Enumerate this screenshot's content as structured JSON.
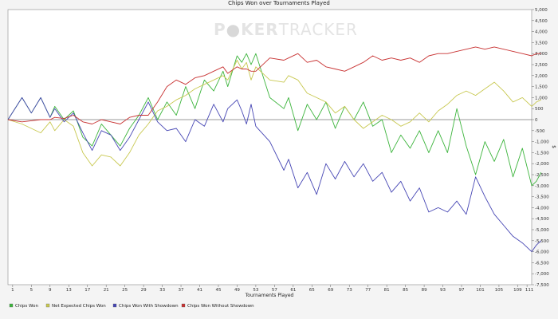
{
  "watermark": {
    "left": "P",
    "mid": "KER",
    "right": "TRACKER"
  },
  "chart_data": {
    "type": "line",
    "title": "Chips Won over Tournaments Played",
    "xlabel": "Tournaments Played",
    "ylabel": "$",
    "xlim": [
      0,
      112
    ],
    "ylim": [
      -7500,
      5000
    ],
    "x_ticks": [
      1,
      5,
      9,
      13,
      17,
      21,
      25,
      29,
      33,
      37,
      41,
      45,
      49,
      53,
      57,
      61,
      65,
      69,
      73,
      77,
      81,
      85,
      89,
      93,
      97,
      101,
      105,
      109,
      111
    ],
    "y_ticks": [
      5000,
      4500,
      4000,
      3500,
      3000,
      2500,
      2000,
      1500,
      1000,
      500,
      0,
      -500,
      -1000,
      -1500,
      -2000,
      -2500,
      -3000,
      -3500,
      -4000,
      -4500,
      -5000,
      -5500,
      -6000,
      -6500,
      -7000,
      -7500
    ],
    "y_tick_labels": [
      "5,000",
      "4,500",
      "4,000",
      "3,500",
      "3,000",
      "2,500",
      "2,000",
      "1,500",
      "1,000",
      "500",
      "0",
      "-500",
      "-1,000",
      "-1,500",
      "-2,000",
      "-2,500",
      "-3,000",
      "-3,500",
      "-4,000",
      "-4,500",
      "-5,000",
      "-5,500",
      "-6,000",
      "-6,500",
      "-7,000",
      "-7,500"
    ],
    "grid": false,
    "legend_position": "bottom",
    "series": [
      {
        "name": "Chips Won",
        "color": "#3cb43c",
        "points": [
          [
            0,
            0
          ],
          [
            3,
            1000
          ],
          [
            5,
            300
          ],
          [
            7,
            1000
          ],
          [
            9,
            100
          ],
          [
            10,
            600
          ],
          [
            12,
            0
          ],
          [
            14,
            400
          ],
          [
            16,
            -800
          ],
          [
            18,
            -1200
          ],
          [
            20,
            -200
          ],
          [
            22,
            -700
          ],
          [
            24,
            -1200
          ],
          [
            26,
            -400
          ],
          [
            28,
            200
          ],
          [
            30,
            1000
          ],
          [
            32,
            0
          ],
          [
            34,
            800
          ],
          [
            36,
            200
          ],
          [
            38,
            1500
          ],
          [
            40,
            500
          ],
          [
            42,
            1800
          ],
          [
            44,
            1300
          ],
          [
            46,
            2200
          ],
          [
            47,
            1500
          ],
          [
            49,
            2900
          ],
          [
            50,
            2600
          ],
          [
            51,
            3000
          ],
          [
            52,
            2500
          ],
          [
            53,
            3000
          ],
          [
            56,
            1000
          ],
          [
            59,
            500
          ],
          [
            60,
            1000
          ],
          [
            62,
            -500
          ],
          [
            64,
            700
          ],
          [
            66,
            0
          ],
          [
            68,
            800
          ],
          [
            70,
            -400
          ],
          [
            72,
            600
          ],
          [
            74,
            0
          ],
          [
            76,
            800
          ],
          [
            78,
            -300
          ],
          [
            80,
            0
          ],
          [
            82,
            -1500
          ],
          [
            84,
            -700
          ],
          [
            86,
            -1300
          ],
          [
            88,
            -500
          ],
          [
            90,
            -1500
          ],
          [
            92,
            -500
          ],
          [
            94,
            -1500
          ],
          [
            96,
            500
          ],
          [
            98,
            -1200
          ],
          [
            100,
            -2500
          ],
          [
            102,
            -1000
          ],
          [
            104,
            -1900
          ],
          [
            106,
            -900
          ],
          [
            108,
            -2600
          ],
          [
            110,
            -1300
          ],
          [
            112,
            -3000
          ],
          [
            113,
            -2800
          ],
          [
            114,
            -2400
          ]
        ]
      },
      {
        "name": "Net Expected Chips Won",
        "color": "#c8c850",
        "points": [
          [
            0,
            0
          ],
          [
            3,
            -200
          ],
          [
            5,
            -400
          ],
          [
            7,
            -600
          ],
          [
            9,
            -100
          ],
          [
            10,
            -500
          ],
          [
            12,
            0
          ],
          [
            14,
            -300
          ],
          [
            16,
            -1500
          ],
          [
            18,
            -2100
          ],
          [
            20,
            -1600
          ],
          [
            22,
            -1700
          ],
          [
            24,
            -2100
          ],
          [
            26,
            -1500
          ],
          [
            28,
            -700
          ],
          [
            30,
            -200
          ],
          [
            32,
            400
          ],
          [
            34,
            600
          ],
          [
            36,
            900
          ],
          [
            38,
            1100
          ],
          [
            40,
            1400
          ],
          [
            42,
            1600
          ],
          [
            44,
            1800
          ],
          [
            46,
            2000
          ],
          [
            47,
            1800
          ],
          [
            49,
            2700
          ],
          [
            50,
            2300
          ],
          [
            51,
            2600
          ],
          [
            52,
            1800
          ],
          [
            53,
            2400
          ],
          [
            56,
            1800
          ],
          [
            59,
            1700
          ],
          [
            60,
            2000
          ],
          [
            62,
            1800
          ],
          [
            64,
            1200
          ],
          [
            66,
            1000
          ],
          [
            68,
            800
          ],
          [
            70,
            300
          ],
          [
            72,
            600
          ],
          [
            74,
            0
          ],
          [
            76,
            -400
          ],
          [
            78,
            -100
          ],
          [
            80,
            200
          ],
          [
            82,
            0
          ],
          [
            84,
            -300
          ],
          [
            86,
            -100
          ],
          [
            88,
            300
          ],
          [
            90,
            -100
          ],
          [
            92,
            400
          ],
          [
            94,
            700
          ],
          [
            96,
            1100
          ],
          [
            98,
            1300
          ],
          [
            100,
            1100
          ],
          [
            102,
            1400
          ],
          [
            104,
            1700
          ],
          [
            106,
            1300
          ],
          [
            108,
            800
          ],
          [
            110,
            1000
          ],
          [
            112,
            600
          ],
          [
            113,
            800
          ],
          [
            114,
            900
          ]
        ]
      },
      {
        "name": "Chips Won With Showdown",
        "color": "#4646b4",
        "points": [
          [
            0,
            0
          ],
          [
            3,
            1000
          ],
          [
            5,
            300
          ],
          [
            7,
            1000
          ],
          [
            9,
            100
          ],
          [
            10,
            500
          ],
          [
            12,
            -100
          ],
          [
            14,
            300
          ],
          [
            16,
            -600
          ],
          [
            18,
            -1400
          ],
          [
            20,
            -500
          ],
          [
            22,
            -700
          ],
          [
            24,
            -1400
          ],
          [
            26,
            -800
          ],
          [
            28,
            0
          ],
          [
            30,
            800
          ],
          [
            32,
            -100
          ],
          [
            34,
            -500
          ],
          [
            36,
            -400
          ],
          [
            38,
            -1000
          ],
          [
            40,
            0
          ],
          [
            42,
            -300
          ],
          [
            44,
            700
          ],
          [
            46,
            -100
          ],
          [
            47,
            500
          ],
          [
            49,
            900
          ],
          [
            50,
            400
          ],
          [
            51,
            -200
          ],
          [
            52,
            700
          ],
          [
            53,
            -300
          ],
          [
            56,
            -1000
          ],
          [
            59,
            -2300
          ],
          [
            60,
            -1800
          ],
          [
            62,
            -3100
          ],
          [
            64,
            -2400
          ],
          [
            66,
            -3400
          ],
          [
            68,
            -2000
          ],
          [
            70,
            -2700
          ],
          [
            72,
            -1900
          ],
          [
            74,
            -2600
          ],
          [
            76,
            -2000
          ],
          [
            78,
            -2800
          ],
          [
            80,
            -2400
          ],
          [
            82,
            -3300
          ],
          [
            84,
            -2800
          ],
          [
            86,
            -3700
          ],
          [
            88,
            -3100
          ],
          [
            90,
            -4200
          ],
          [
            92,
            -4000
          ],
          [
            94,
            -4200
          ],
          [
            96,
            -3700
          ],
          [
            98,
            -4300
          ],
          [
            100,
            -2600
          ],
          [
            102,
            -3500
          ],
          [
            104,
            -4300
          ],
          [
            106,
            -4800
          ],
          [
            108,
            -5300
          ],
          [
            110,
            -5600
          ],
          [
            112,
            -6000
          ],
          [
            113,
            -5700
          ],
          [
            114,
            -5500
          ]
        ]
      },
      {
        "name": "Chips Won Without Showdown",
        "color": "#c83232",
        "points": [
          [
            0,
            0
          ],
          [
            3,
            -100
          ],
          [
            5,
            -50
          ],
          [
            7,
            0
          ],
          [
            9,
            0
          ],
          [
            10,
            100
          ],
          [
            12,
            50
          ],
          [
            14,
            200
          ],
          [
            16,
            -100
          ],
          [
            18,
            -200
          ],
          [
            20,
            0
          ],
          [
            22,
            -100
          ],
          [
            24,
            -200
          ],
          [
            26,
            100
          ],
          [
            28,
            200
          ],
          [
            30,
            200
          ],
          [
            32,
            800
          ],
          [
            34,
            1500
          ],
          [
            36,
            1800
          ],
          [
            38,
            1600
          ],
          [
            40,
            1900
          ],
          [
            42,
            2000
          ],
          [
            44,
            2200
          ],
          [
            46,
            2400
          ],
          [
            47,
            2100
          ],
          [
            49,
            2400
          ],
          [
            50,
            2300
          ],
          [
            51,
            2300
          ],
          [
            52,
            2200
          ],
          [
            53,
            2200
          ],
          [
            56,
            2800
          ],
          [
            59,
            2700
          ],
          [
            60,
            2800
          ],
          [
            62,
            3000
          ],
          [
            64,
            2600
          ],
          [
            66,
            2700
          ],
          [
            68,
            2400
          ],
          [
            70,
            2300
          ],
          [
            72,
            2200
          ],
          [
            74,
            2400
          ],
          [
            76,
            2600
          ],
          [
            78,
            2900
          ],
          [
            80,
            2700
          ],
          [
            82,
            2800
          ],
          [
            84,
            2700
          ],
          [
            86,
            2800
          ],
          [
            88,
            2600
          ],
          [
            90,
            2900
          ],
          [
            92,
            3000
          ],
          [
            94,
            3000
          ],
          [
            96,
            3100
          ],
          [
            98,
            3200
          ],
          [
            100,
            3300
          ],
          [
            102,
            3200
          ],
          [
            104,
            3300
          ],
          [
            106,
            3200
          ],
          [
            108,
            3100
          ],
          [
            110,
            3000
          ],
          [
            112,
            2900
          ],
          [
            113,
            3000
          ],
          [
            114,
            3000
          ]
        ]
      }
    ]
  }
}
